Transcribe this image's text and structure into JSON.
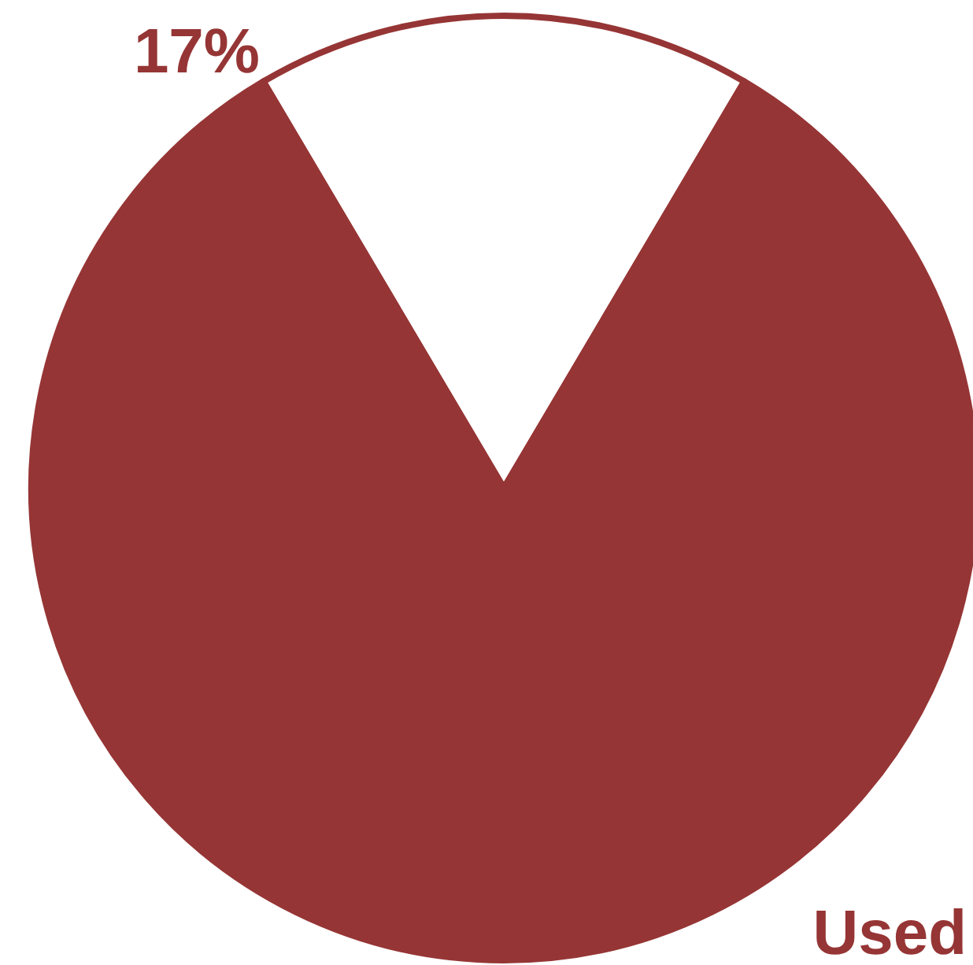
{
  "chart_data": {
    "type": "pie",
    "categories": [
      null,
      "Used"
    ],
    "values": [
      17,
      83
    ],
    "colors": [
      "#ffffff",
      "#963535"
    ],
    "value_labels": [
      "17%",
      null
    ]
  }
}
